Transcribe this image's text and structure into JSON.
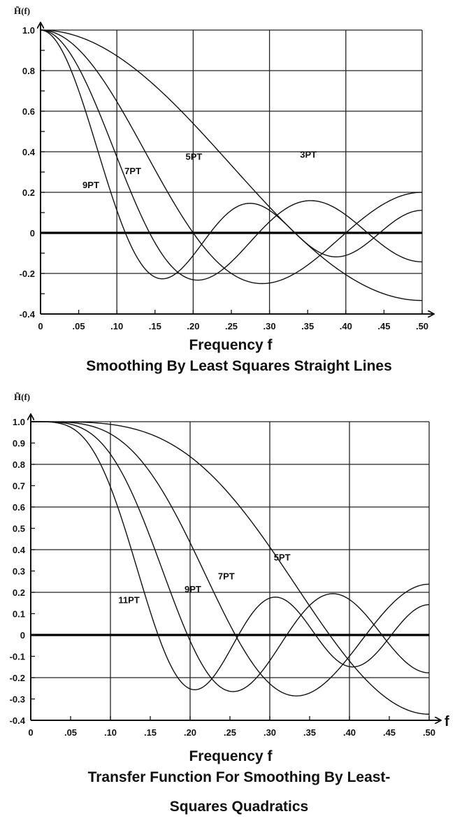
{
  "chart_data": [
    {
      "type": "line",
      "ylabel": "H̃(f)",
      "xlabel": "Frequency f",
      "caption_lines": [
        "Smoothing By Least Squares Straight Lines"
      ],
      "xlim": [
        0,
        0.5
      ],
      "ylim": [
        -0.4,
        1.0
      ],
      "x_ticks": [
        "0",
        ".05",
        ".10",
        ".15",
        ".20",
        ".25",
        ".30",
        ".35",
        ".40",
        ".45",
        ".50"
      ],
      "y_ticks": [
        {
          "value": 1.0,
          "label": "1.0"
        },
        {
          "value": 0.8,
          "label": "0.8"
        },
        {
          "value": 0.6,
          "label": "0.6"
        },
        {
          "value": 0.4,
          "label": "0.4"
        },
        {
          "value": 0.2,
          "label": "0.2"
        },
        {
          "value": 0.0,
          "label": "0"
        },
        {
          "value": -0.2,
          "label": "-0.2"
        },
        {
          "value": -0.4,
          "label": "-0.4"
        }
      ],
      "series": [
        {
          "name": "3PT",
          "N": 3,
          "label_at": [
            0.34,
            0.37
          ]
        },
        {
          "name": "5PT",
          "N": 5,
          "label_at": [
            0.19,
            0.36
          ]
        },
        {
          "name": "7PT",
          "N": 7,
          "label_at": [
            0.11,
            0.29
          ]
        },
        {
          "name": "9PT",
          "N": 9,
          "label_at": [
            0.055,
            0.22
          ]
        }
      ]
    },
    {
      "type": "line",
      "ylabel": "H̃(f)",
      "xlabel": "Frequency f",
      "x_axis_arrow_label": "f",
      "caption_lines": [
        "Transfer Function For Smoothing By Least-",
        "Squares Quadratics"
      ],
      "xlim": [
        0,
        0.5
      ],
      "ylim": [
        -0.4,
        1.0
      ],
      "x_ticks": [
        "0",
        ".05",
        ".10",
        ".15",
        ".20",
        ".25",
        ".30",
        ".35",
        ".40",
        ".45",
        ".50"
      ],
      "y_ticks": [
        {
          "value": 1.0,
          "label": "1.0"
        },
        {
          "value": 0.9,
          "label": "0.9"
        },
        {
          "value": 0.8,
          "label": "0.8"
        },
        {
          "value": 0.7,
          "label": "0.7"
        },
        {
          "value": 0.6,
          "label": "0.6"
        },
        {
          "value": 0.5,
          "label": "0.5"
        },
        {
          "value": 0.4,
          "label": "0.4"
        },
        {
          "value": 0.3,
          "label": "0.3"
        },
        {
          "value": 0.2,
          "label": "0.2"
        },
        {
          "value": 0.1,
          "label": "0.1"
        },
        {
          "value": 0.0,
          "label": "0"
        },
        {
          "value": -0.1,
          "label": "-0.1"
        },
        {
          "value": -0.2,
          "label": "-0.2"
        },
        {
          "value": -0.3,
          "label": "-0.3"
        },
        {
          "value": -0.4,
          "label": "-0.4"
        }
      ],
      "series": [
        {
          "name": "5PT",
          "N": 5,
          "label_at": [
            0.305,
            0.35
          ]
        },
        {
          "name": "7PT",
          "N": 7,
          "label_at": [
            0.235,
            0.26
          ]
        },
        {
          "name": "9PT",
          "N": 9,
          "label_at": [
            0.193,
            0.2
          ]
        },
        {
          "name": "11PT",
          "N": 11,
          "label_at": [
            0.11,
            0.15
          ]
        }
      ]
    }
  ]
}
